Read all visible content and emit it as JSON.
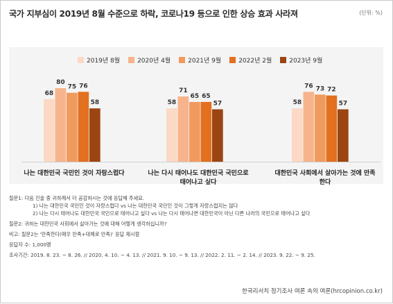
{
  "title": "국가 지부심이 2019년 8월 수준으로 하락, 코로나19 등으로 인한 상승 효과 사라져",
  "unit": "(단위: %)",
  "chart_data": {
    "type": "bar",
    "categories": [
      "나는 대한민국 국민인 것이 자랑스럽다",
      "나는 다시 태어나도 대한민국 국민으로 태어나고 싶다",
      "대한민국 사회에서 살아가는 것에 만족한다"
    ],
    "category_lines": [
      [
        "나는 대한민국 국민인 것이 자랑스럽다"
      ],
      [
        "나는 다시 태어나도 대한민국 국민으로",
        "태어나고 싶다"
      ],
      [
        "대한민국 사회에서 살아가는 것에 만족한다"
      ]
    ],
    "series": [
      {
        "name": "2019년 8월",
        "values": [
          68,
          58,
          58
        ],
        "color": "#fbd9c4"
      },
      {
        "name": "2020년 4월",
        "values": [
          80,
          71,
          76
        ],
        "color": "#f7b48c"
      },
      {
        "name": "2021년 9월",
        "values": [
          75,
          65,
          73
        ],
        "color": "#f19a5e"
      },
      {
        "name": "2022년 2월",
        "values": [
          76,
          65,
          72
        ],
        "color": "#e2701f"
      },
      {
        "name": "2023년 9월",
        "values": [
          58,
          57,
          57
        ],
        "color": "#9b4513"
      }
    ],
    "ylim": [
      0,
      100
    ]
  },
  "notes": [
    "질문1:   다음 진술 중 귀하께서 더 공감하시는 것에 응답해 주세요.",
    "1) 나는 대한민국 국민인 것이 자랑스럽다 vs 나는 대한민국 국민인 것이 그렇게 자랑스럽지는 않다",
    "2) 나는 다시 태어나도 대한민국 국민으로 태어나고 싶다 vs 나는 다시 태어나면 대한민국이 아닌 다른 나라의 국민으로 태어나고 싶다",
    "질문2: 귀하는 대한민국 사회에서 살아가는 것에 대해 어떻게 생각하십니까?",
    "비고: 질문2는 '만족한다(매우 만족+대체로 만족)' 응답 제시함",
    "응답자 수: 1,000명",
    "조사기간: 2019. 8. 23. ~ 8. 26. // 2020. 4. 10. ~ 4. 13. // 2021. 9. 10. ~ 9. 13. // 2022. 2. 11. ~ 2. 14. // 2023. 9. 22. ~ 9. 25."
  ],
  "source": "한국리서치 정기조사 여론 속의 여론(hrcopinion.co.kr)"
}
